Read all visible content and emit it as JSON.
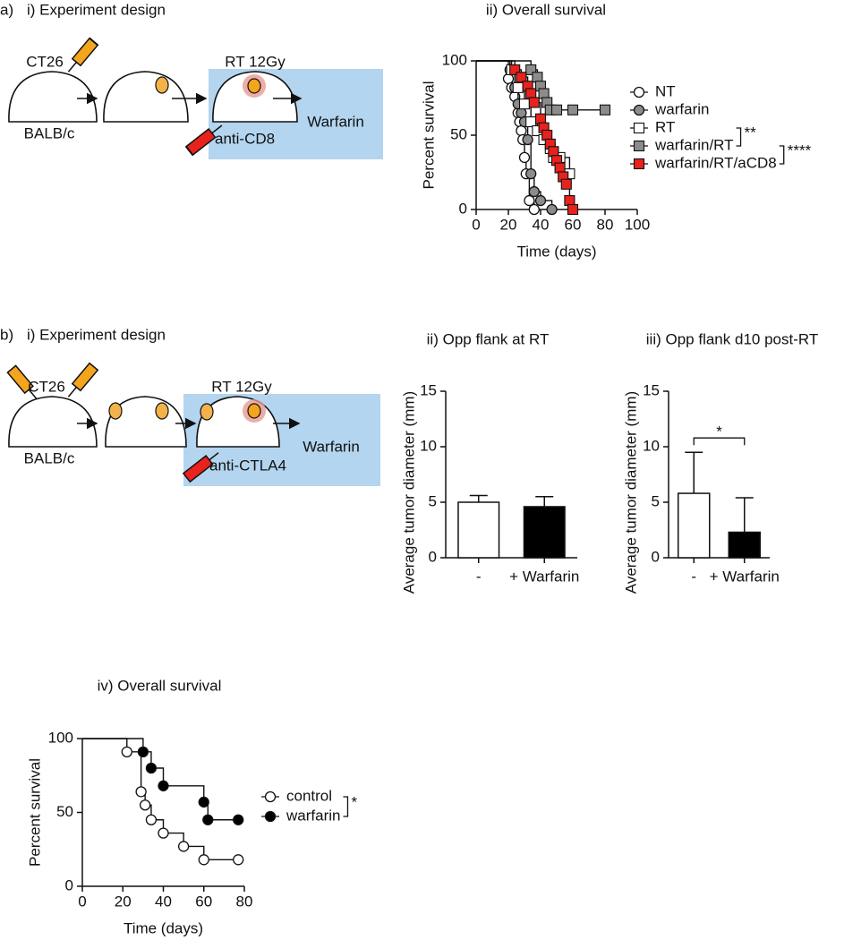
{
  "panel_labels": [
    "a)",
    "b)"
  ],
  "diagrams": [
    {
      "title": "i) Experiment design",
      "tumor": "CT26",
      "strain": "BALB/c",
      "treatment": "RT 12Gy",
      "antibody": "anti-CD8",
      "drug": "Warfarin"
    },
    {
      "title": "i) Experiment design",
      "tumor": "CT26",
      "strain": "BALB/c",
      "treatment": "RT 12Gy",
      "antibody": "anti-CTLA4",
      "drug": "Warfarin"
    }
  ],
  "chart_data": [
    {
      "type": "survival",
      "title": "ii) Overall survival",
      "xlabel": "Time (days)",
      "ylabel": "Percent survival",
      "xlim": [
        0,
        100
      ],
      "xticks": [
        0,
        20,
        40,
        60,
        80,
        100
      ],
      "ylim": [
        0,
        100
      ],
      "yticks": [
        0,
        50,
        100
      ],
      "series": [
        {
          "name": "NT",
          "marker": "circle",
          "color": "#ffffff",
          "x": [
            0,
            20,
            22,
            24,
            26,
            27,
            28,
            29,
            30,
            31,
            33,
            36
          ],
          "values": [
            100,
            88,
            82,
            76,
            65,
            59,
            53,
            47,
            35,
            24,
            6,
            0
          ]
        },
        {
          "name": "warfarin",
          "marker": "circle",
          "color": "#8c8c8c",
          "x": [
            0,
            21,
            24,
            26,
            28,
            30,
            32,
            34,
            36,
            40,
            47
          ],
          "values": [
            100,
            94,
            82,
            71,
            65,
            59,
            47,
            24,
            12,
            6,
            0
          ]
        },
        {
          "name": "RT",
          "marker": "square",
          "color": "#ffffff",
          "x": [
            0,
            22,
            26,
            30,
            34,
            38,
            42,
            46,
            48,
            52,
            58
          ],
          "values": [
            100,
            94,
            82,
            71,
            59,
            53,
            47,
            41,
            35,
            35,
            24
          ]
        },
        {
          "name": "warfarin/RT",
          "marker": "square",
          "color": "#8c8c8c",
          "x": [
            0,
            34,
            38,
            40,
            42,
            44,
            46,
            50,
            60,
            80
          ],
          "values": [
            100,
            94,
            89,
            83,
            78,
            72,
            67,
            67,
            67,
            67
          ]
        },
        {
          "name": "warfarin/RT/aCD8",
          "marker": "square",
          "color": "#e8221c",
          "x": [
            0,
            24,
            28,
            32,
            34,
            36,
            40,
            42,
            44,
            46,
            48,
            50,
            52,
            54,
            56,
            58,
            60
          ],
          "values": [
            100,
            94,
            89,
            83,
            78,
            72,
            61,
            55,
            50,
            44,
            39,
            33,
            28,
            22,
            17,
            6,
            0
          ]
        }
      ],
      "annotations": [
        "**",
        "****"
      ]
    },
    {
      "type": "bar",
      "title": "ii) Opp flank at RT",
      "ylabel": "Average tumor diameter (mm)",
      "ylim": [
        0,
        15
      ],
      "yticks": [
        0,
        5,
        10,
        15
      ],
      "categories": [
        "-",
        "+ Warfarin"
      ],
      "values": [
        5.0,
        4.6
      ],
      "errors": [
        0.6,
        0.9
      ],
      "colors": [
        "#ffffff",
        "#000000"
      ]
    },
    {
      "type": "bar",
      "title": "iii) Opp flank d10 post-RT",
      "ylabel": "Average tumor diameter (mm)",
      "ylim": [
        0,
        15
      ],
      "yticks": [
        0,
        5,
        10,
        15
      ],
      "categories": [
        "-",
        "+ Warfarin"
      ],
      "values": [
        5.8,
        2.3
      ],
      "errors": [
        3.7,
        3.1
      ],
      "colors": [
        "#ffffff",
        "#000000"
      ],
      "annotations": [
        "*"
      ]
    },
    {
      "type": "survival",
      "title": "iv) Overall survival",
      "xlabel": "Time (days)",
      "ylabel": "Percent survival",
      "xlim": [
        0,
        80
      ],
      "xticks": [
        0,
        20,
        40,
        60,
        80
      ],
      "ylim": [
        0,
        100
      ],
      "yticks": [
        0,
        50,
        100
      ],
      "series": [
        {
          "name": "control",
          "marker": "circle",
          "color": "#ffffff",
          "x": [
            0,
            22,
            29,
            31,
            34,
            40,
            50,
            60,
            77
          ],
          "values": [
            100,
            91,
            64,
            55,
            45,
            36,
            27,
            18,
            18
          ]
        },
        {
          "name": "warfarin",
          "marker": "circle",
          "color": "#000000",
          "x": [
            0,
            30,
            34,
            40,
            60,
            62,
            77
          ],
          "values": [
            100,
            91,
            80,
            68,
            57,
            45,
            45
          ]
        }
      ],
      "annotations": [
        "*"
      ]
    }
  ]
}
